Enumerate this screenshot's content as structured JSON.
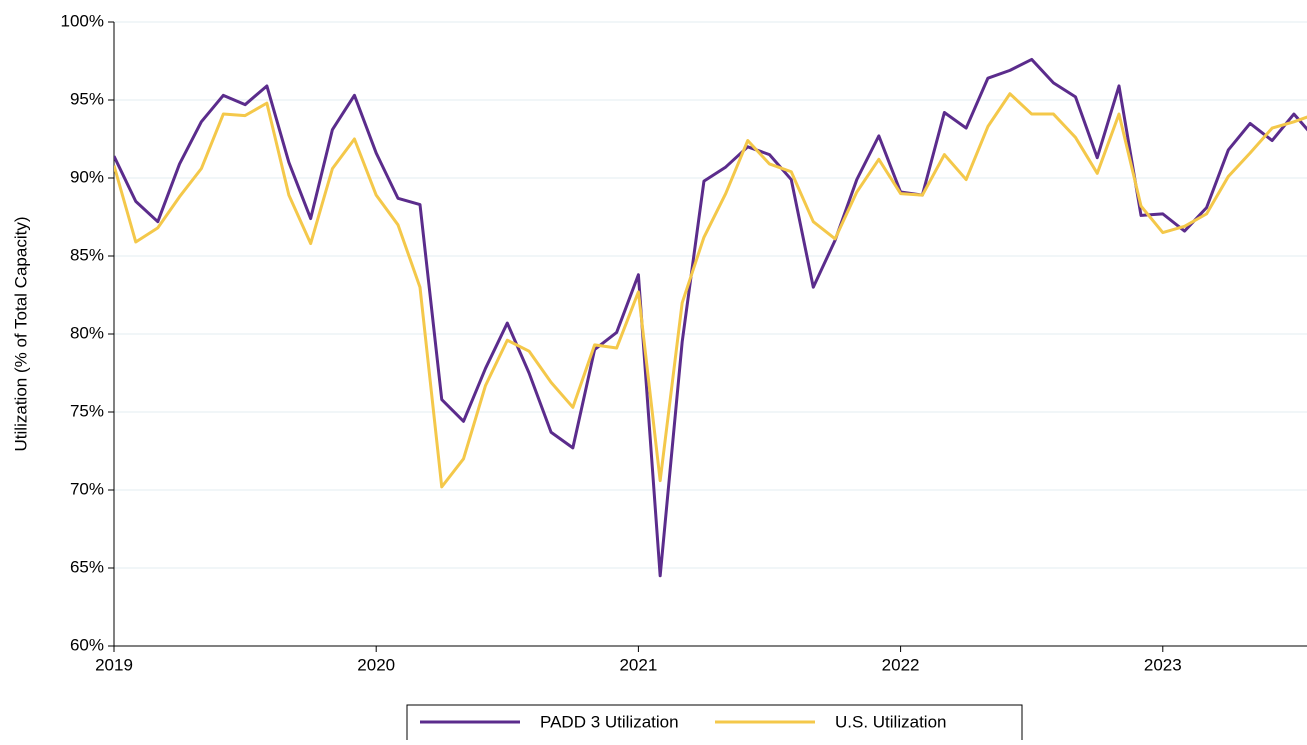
{
  "chart_data": {
    "type": "line",
    "y_label": "Utilization (% of Total Capacity)",
    "x": [
      2019,
      2019.083,
      2019.167,
      2019.25,
      2019.333,
      2019.417,
      2019.5,
      2019.583,
      2019.667,
      2019.75,
      2019.833,
      2019.917,
      2020,
      2020.083,
      2020.167,
      2020.25,
      2020.333,
      2020.417,
      2020.5,
      2020.583,
      2020.667,
      2020.75,
      2020.833,
      2020.917,
      2021,
      2021.083,
      2021.167,
      2021.25,
      2021.333,
      2021.417,
      2021.5,
      2021.583,
      2021.667,
      2021.75,
      2021.833,
      2021.917,
      2022,
      2022.083,
      2022.167,
      2022.25,
      2022.333,
      2022.417,
      2022.5,
      2022.583,
      2022.667,
      2022.75,
      2022.833,
      2022.917,
      2023,
      2023.083,
      2023.167,
      2023.25,
      2023.333,
      2023.417,
      2023.5,
      2023.583
    ],
    "series": [
      {
        "name": "PADD 3 Utilization",
        "color": "#5b2c8c",
        "values": [
          91.4,
          88.5,
          87.2,
          90.9,
          93.6,
          95.3,
          94.7,
          95.9,
          91.0,
          87.4,
          93.1,
          95.3,
          91.6,
          88.7,
          88.3,
          75.8,
          74.4,
          77.8,
          80.7,
          77.5,
          73.7,
          72.7,
          79.0,
          80.1,
          83.8,
          64.5,
          79.5,
          89.8,
          90.7,
          92.0,
          91.5,
          89.9,
          83.0,
          86.0,
          89.9,
          92.7,
          89.1,
          88.9,
          94.2,
          93.2,
          96.4,
          96.9,
          97.6,
          96.1,
          95.2,
          91.3,
          95.9,
          87.6,
          87.7,
          86.6,
          88.1,
          91.8,
          93.5,
          92.4,
          94.1,
          92.5
        ]
      },
      {
        "name": "U.S. Utilization",
        "color": "#f4c84a",
        "values": [
          90.8,
          85.9,
          86.8,
          88.8,
          90.6,
          94.1,
          94.0,
          94.8,
          88.9,
          85.8,
          90.6,
          92.5,
          88.9,
          87.0,
          83.0,
          70.2,
          72.0,
          76.7,
          79.6,
          78.9,
          76.9,
          75.3,
          79.3,
          79.1,
          82.7,
          70.6,
          82.0,
          86.2,
          89.0,
          92.4,
          90.9,
          90.4,
          87.2,
          86.1,
          89.1,
          91.2,
          89.0,
          88.9,
          91.5,
          89.9,
          93.3,
          95.4,
          94.1,
          94.1,
          92.6,
          90.3,
          94.1,
          88.2,
          86.5,
          86.9,
          87.7,
          90.1,
          91.6,
          93.2,
          93.6,
          94.1
        ]
      }
    ],
    "xlim": [
      2019,
      2023.55
    ],
    "xticks": [
      2019,
      2020,
      2021,
      2022,
      2023
    ],
    "ylim": [
      60,
      100
    ],
    "yticks": [
      {
        "value": 60,
        "label": "60%"
      },
      {
        "value": 65,
        "label": "65%"
      },
      {
        "value": 70,
        "label": "70%"
      },
      {
        "value": 75,
        "label": "75%"
      },
      {
        "value": 80,
        "label": "80%"
      },
      {
        "value": 85,
        "label": "85%"
      },
      {
        "value": 90,
        "label": "90%"
      },
      {
        "value": 95,
        "label": "95%"
      },
      {
        "value": 100,
        "label": "100%"
      }
    ],
    "grid": true
  }
}
